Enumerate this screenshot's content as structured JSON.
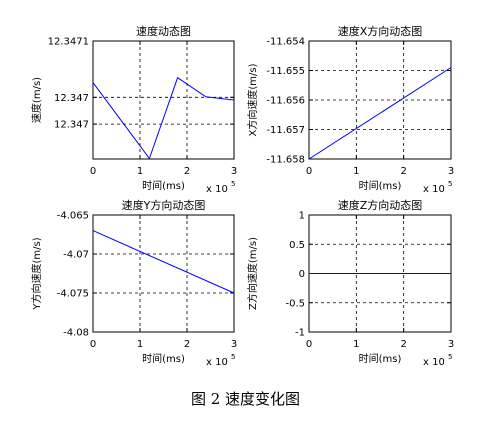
{
  "figure_caption": "图 2  速度变化图",
  "chart_data": [
    {
      "type": "line",
      "title": "速度动态图",
      "xlabel": "时间(ms)",
      "ylabel": "速度(m/s)",
      "x_exponent_label": "x 10",
      "x_exponent_power": "5",
      "xlim": [
        0,
        3
      ],
      "ylim": [
        12.34667,
        12.34711
      ],
      "x_ticks": [
        0,
        1,
        2,
        3
      ],
      "x_tick_labels": [
        "0",
        "1",
        "2",
        "3"
      ],
      "y_ticks": [
        12.34711,
        12.3469,
        12.3468
      ],
      "y_tick_labels": [
        "12.3471",
        "12.347",
        "12.347"
      ],
      "grid": "dashed",
      "series": [
        {
          "color": "#0000ff",
          "x": [
            0,
            1.2,
            1.8,
            2.4,
            3
          ],
          "y": [
            12.346955,
            12.346672,
            12.346973,
            12.346902,
            12.34689
          ]
        }
      ]
    },
    {
      "type": "line",
      "title": "速度X方向动态图",
      "xlabel": "时间(ms)",
      "ylabel": "X方向速度(m/s)",
      "x_exponent_label": "x 10",
      "x_exponent_power": "5",
      "xlim": [
        0,
        3
      ],
      "ylim": [
        -11.658,
        -11.654
      ],
      "x_ticks": [
        0,
        1,
        2,
        3
      ],
      "x_tick_labels": [
        "0",
        "1",
        "2",
        "3"
      ],
      "y_ticks": [
        -11.658,
        -11.657,
        -11.656,
        -11.655,
        -11.654
      ],
      "y_tick_labels": [
        "-11.658",
        "-11.657",
        "-11.656",
        "-11.655",
        "-11.654"
      ],
      "grid": "dashed",
      "series": [
        {
          "color": "#0000ff",
          "x": [
            0,
            3
          ],
          "y": [
            -11.658,
            -11.6549
          ]
        }
      ]
    },
    {
      "type": "line",
      "title": "速度Y方向动态图",
      "xlabel": "时间(ms)",
      "ylabel": "Y方向速度(m/s)",
      "x_exponent_label": "x 10",
      "x_exponent_power": "5",
      "xlim": [
        0,
        3
      ],
      "ylim": [
        -4.08,
        -4.065
      ],
      "x_ticks": [
        0,
        1,
        2,
        3
      ],
      "x_tick_labels": [
        "0",
        "1",
        "2",
        "3"
      ],
      "y_ticks": [
        -4.08,
        -4.075,
        -4.07,
        -4.065
      ],
      "y_tick_labels": [
        "-4.08",
        "-4.075",
        "-4.07",
        "-4.065"
      ],
      "grid": "dashed",
      "series": [
        {
          "color": "#0000ff",
          "x": [
            0,
            3
          ],
          "y": [
            -4.067,
            -4.075
          ]
        }
      ]
    },
    {
      "type": "line",
      "title": "速度Z方向动态图",
      "xlabel": "时间(ms)",
      "ylabel": "Z方向速度(m/s)",
      "x_exponent_label": "x 10",
      "x_exponent_power": "5",
      "xlim": [
        0,
        3
      ],
      "ylim": [
        -1,
        1
      ],
      "x_ticks": [
        0,
        1,
        2,
        3
      ],
      "x_tick_labels": [
        "0",
        "1",
        "2",
        "3"
      ],
      "y_ticks": [
        -1,
        -0.5,
        0,
        0.5,
        1
      ],
      "y_tick_labels": [
        "-1",
        "-0.5",
        "0",
        "0.5",
        "1"
      ],
      "grid": "dashed",
      "series": [
        {
          "color": "#0000ff",
          "x": [
            0,
            3
          ],
          "y": [
            0,
            0
          ]
        }
      ]
    }
  ]
}
